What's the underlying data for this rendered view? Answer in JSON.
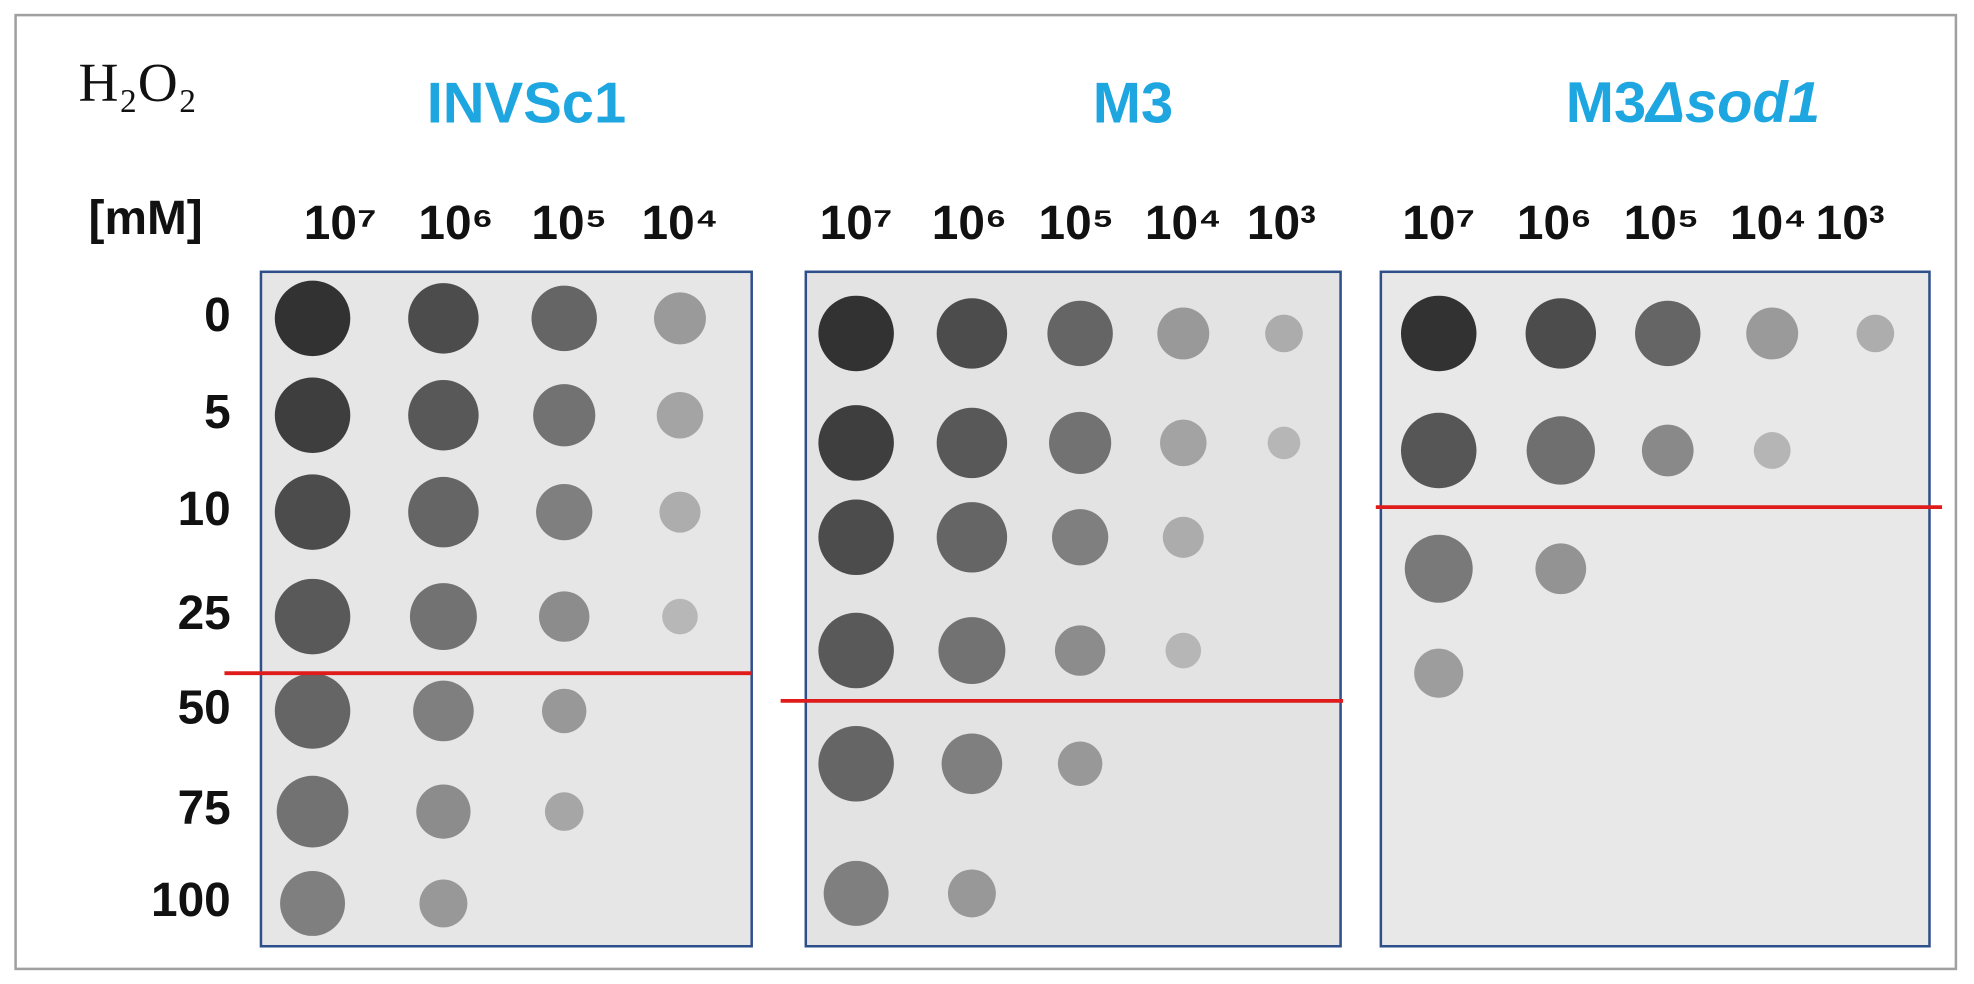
{
  "reagent": "H₂O₂",
  "unit": "[mM]",
  "concentrations": [
    "0",
    "5",
    "10",
    "25",
    "50",
    "75",
    "100"
  ],
  "panels": [
    {
      "title": "INVSc1",
      "dilutions": [
        "10⁷",
        "10⁶",
        "10⁵",
        "10⁴"
      ]
    },
    {
      "title": "M3",
      "dilutions": [
        "10⁷",
        "10⁶",
        "10⁵",
        "10⁴",
        "10³"
      ]
    },
    {
      "title": "M3",
      "title_suffix": "Δsod1",
      "dilutions": [
        "10⁷",
        "10⁶",
        "10⁵",
        "10⁴",
        "10³"
      ]
    }
  ]
}
